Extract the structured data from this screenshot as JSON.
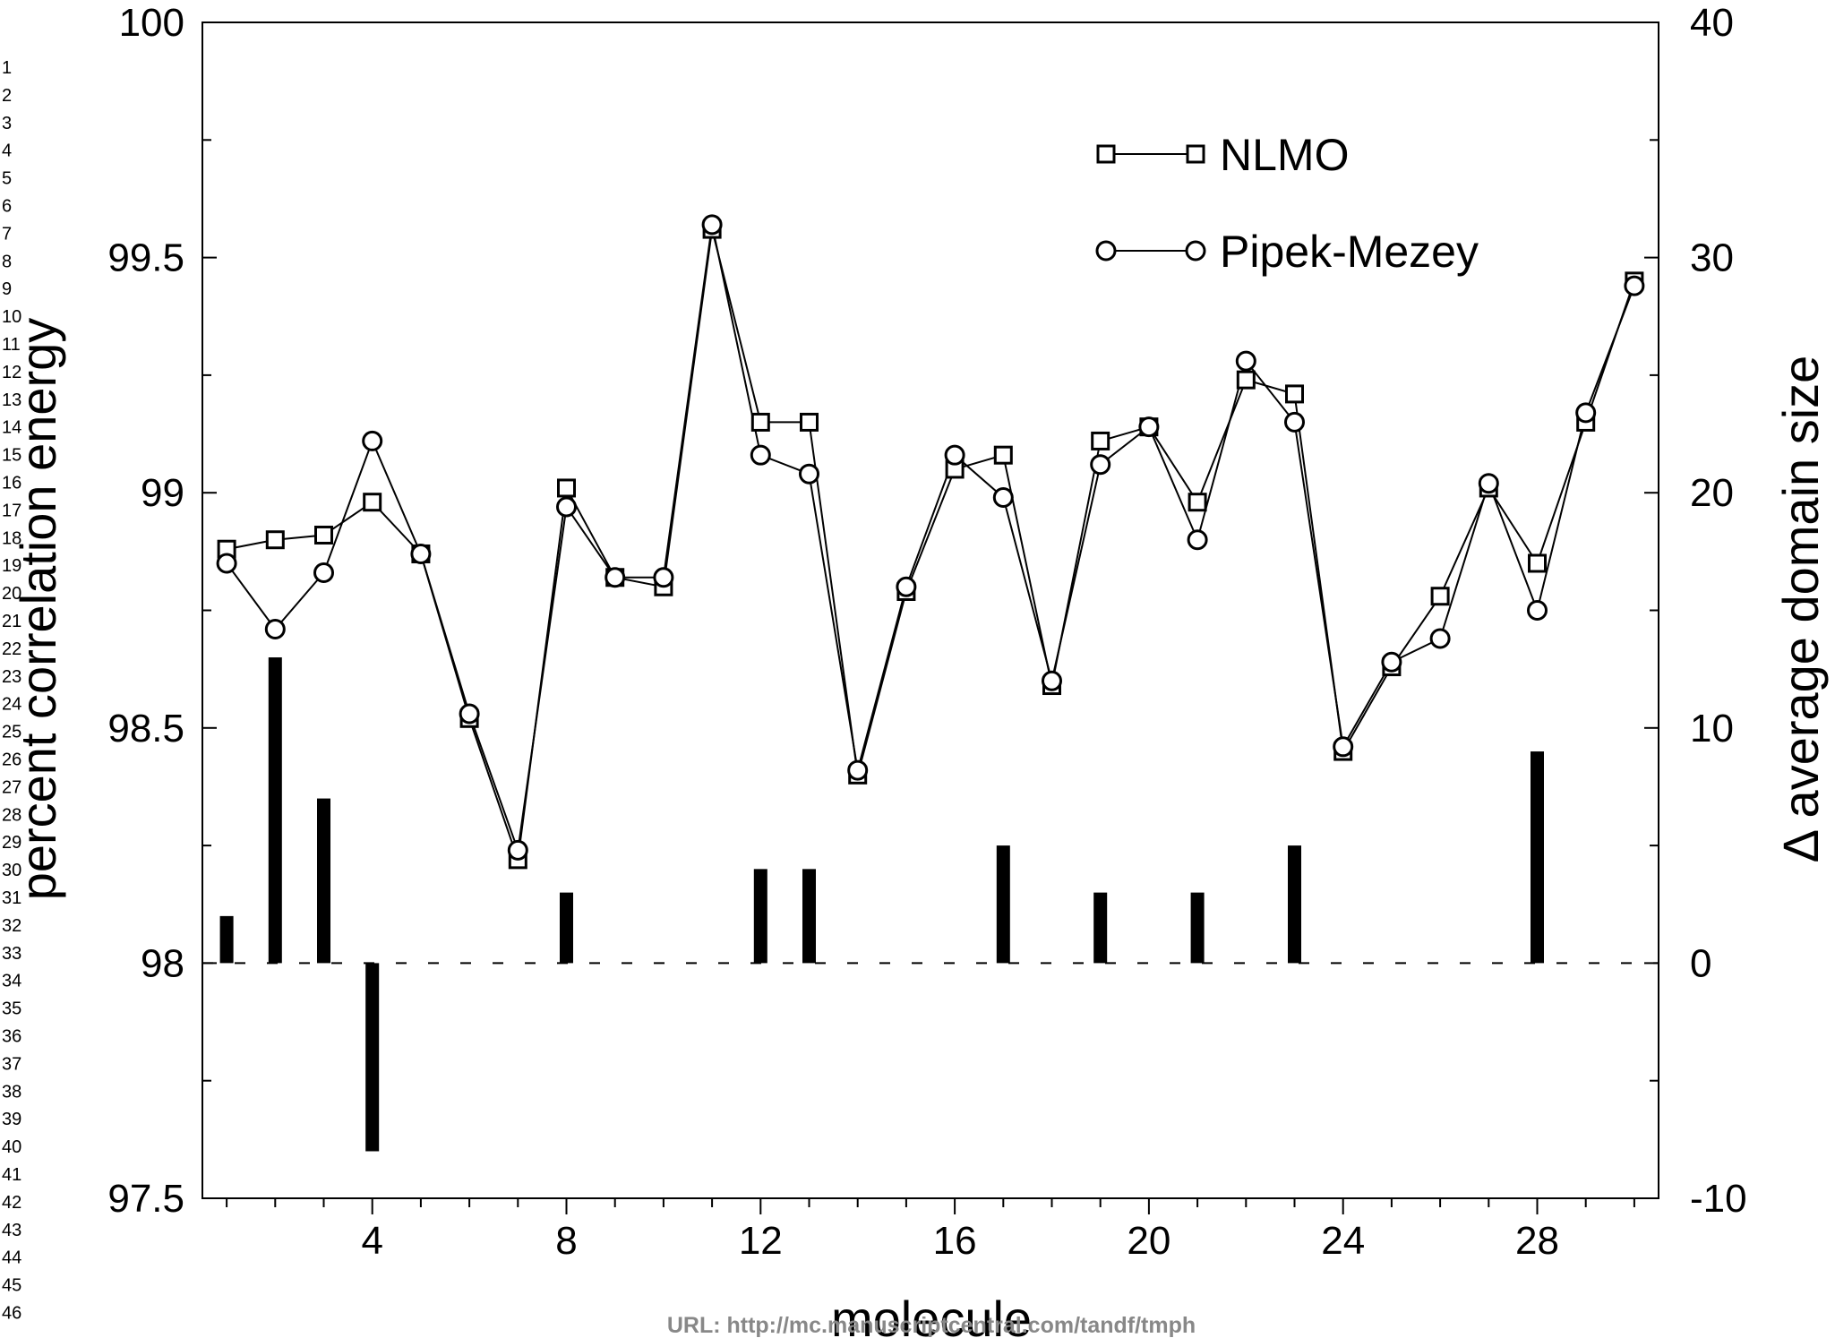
{
  "line_numbers": [
    "1",
    "2",
    "3",
    "4",
    "5",
    "6",
    "7",
    "8",
    "9",
    "10",
    "11",
    "12",
    "13",
    "14",
    "15",
    "16",
    "17",
    "18",
    "19",
    "20",
    "21",
    "22",
    "23",
    "24",
    "25",
    "26",
    "27",
    "28",
    "29",
    "30",
    "31",
    "32",
    "33",
    "34",
    "35",
    "36",
    "37",
    "38",
    "39",
    "40",
    "41",
    "42",
    "43",
    "44",
    "45",
    "46"
  ],
  "footer": {
    "url": "URL: http://mc.manuscriptcentral.com/tandf/tmph"
  },
  "colors": {
    "axis": "#000000",
    "bars": "#000000",
    "series": "#000000",
    "background": "#ffffff",
    "footer": "#888888"
  },
  "chart_data": {
    "type": "line",
    "title": "",
    "xlabel": "molecule",
    "ylabel": "percent correlation energy",
    "y2label": "Δ average domain size",
    "xlim": [
      0.5,
      30.5
    ],
    "ylim": [
      97.5,
      100
    ],
    "y2lim": [
      -10,
      40
    ],
    "x_ticks": [
      4,
      8,
      12,
      16,
      20,
      24,
      28
    ],
    "y_ticks": [
      "97.5",
      "98",
      "98.5",
      "99",
      "99.5",
      "100"
    ],
    "y2_ticks": [
      "-10",
      "0",
      "10",
      "20",
      "30",
      "40"
    ],
    "grid": false,
    "legend_position": "top-right",
    "x": [
      1,
      2,
      3,
      4,
      5,
      6,
      7,
      8,
      9,
      10,
      11,
      12,
      13,
      14,
      15,
      16,
      17,
      18,
      19,
      20,
      21,
      22,
      23,
      24,
      25,
      26,
      27,
      28,
      29,
      30
    ],
    "series": [
      {
        "name": "NLMO",
        "marker": "square",
        "values": [
          98.88,
          98.9,
          98.91,
          98.98,
          98.87,
          98.52,
          98.22,
          99.01,
          98.82,
          98.8,
          99.56,
          99.15,
          99.15,
          98.4,
          98.79,
          99.05,
          99.08,
          98.59,
          99.11,
          99.14,
          98.98,
          99.24,
          99.21,
          98.45,
          98.63,
          98.78,
          99.01,
          98.85,
          99.15,
          99.45
        ]
      },
      {
        "name": "Pipek-Mezey",
        "marker": "circle",
        "values": [
          98.85,
          98.71,
          98.83,
          99.11,
          98.87,
          98.53,
          98.24,
          98.97,
          98.82,
          98.82,
          99.57,
          99.08,
          99.04,
          98.41,
          98.8,
          99.08,
          98.99,
          98.6,
          99.06,
          99.14,
          98.9,
          99.28,
          99.15,
          98.46,
          98.64,
          98.69,
          99.02,
          98.75,
          99.17,
          99.44
        ]
      }
    ],
    "bars": {
      "axis": "right",
      "x": [
        1,
        2,
        3,
        4,
        8,
        12,
        13,
        17,
        19,
        21,
        23,
        28
      ],
      "values": [
        2,
        13,
        7,
        -8,
        3,
        4,
        4,
        5,
        3,
        3,
        5,
        9
      ]
    }
  }
}
